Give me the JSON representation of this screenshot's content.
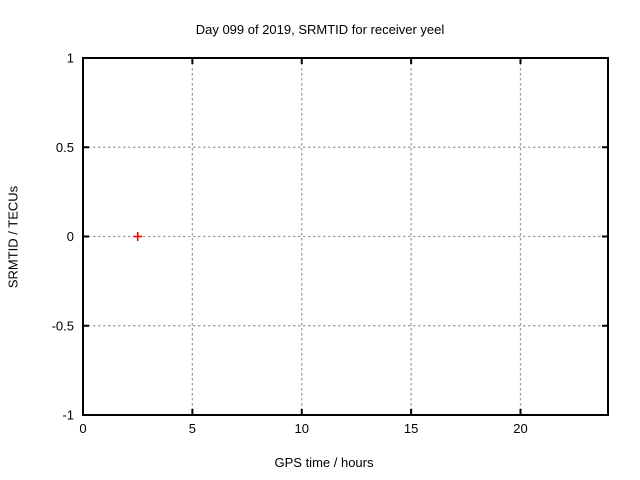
{
  "chart_data": {
    "type": "scatter",
    "title": "Day 099 of 2019, SRMTID for receiver yeel",
    "xlabel": "GPS time / hours",
    "ylabel": "SRMTID / TECUs",
    "xlim": [
      0,
      24
    ],
    "ylim": [
      -1,
      1
    ],
    "xticks": [
      {
        "value": 0,
        "label": "0"
      },
      {
        "value": 5,
        "label": "5"
      },
      {
        "value": 10,
        "label": "10"
      },
      {
        "value": 15,
        "label": "15"
      },
      {
        "value": 20,
        "label": "20"
      }
    ],
    "yticks": [
      {
        "value": -1,
        "label": "-1"
      },
      {
        "value": -0.5,
        "label": "-0.5"
      },
      {
        "value": 0,
        "label": "0"
      },
      {
        "value": 0.5,
        "label": "0.5"
      },
      {
        "value": 1,
        "label": "1"
      }
    ],
    "grid": "dotted",
    "legend": "none",
    "series": [
      {
        "name": "SRMTID",
        "marker": "plus",
        "color": "#ff0000",
        "points": [
          {
            "x": 2.5,
            "y": 0
          }
        ]
      }
    ]
  },
  "colors": {
    "background": "#ffffff",
    "axis": "#000000",
    "grid": "#9e9e9e",
    "text": "#000000",
    "marker": "#ff0000"
  }
}
